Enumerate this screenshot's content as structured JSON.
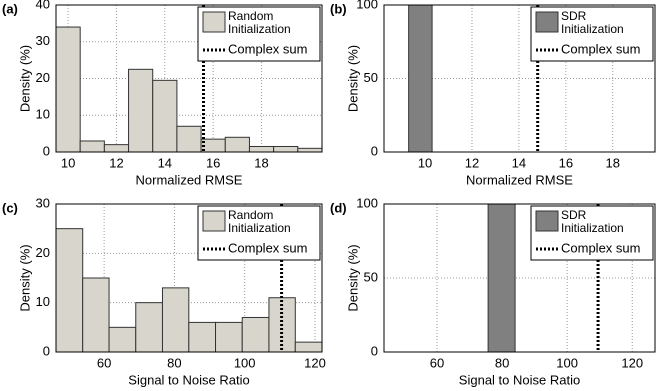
{
  "chart_data": [
    {
      "type": "histogram",
      "panel_label": "(a)",
      "xlabel": "Normalized RMSE",
      "ylabel": "Density (%)",
      "bins": [
        9.5,
        10.5,
        11.5,
        12.5,
        13.5,
        14.5,
        15.5,
        16.5,
        17.5,
        18.5,
        19.5,
        20.5
      ],
      "series": [
        {
          "name": "Random Initialization",
          "color": "#d8d6cc",
          "values": [
            34,
            3,
            2,
            22.5,
            19.5,
            7,
            3.5,
            4,
            1.5,
            1.5,
            1
          ]
        }
      ],
      "vlines": [
        {
          "name": "Complex sum",
          "x": 15.6,
          "color": "#000000"
        }
      ],
      "xlim": [
        9.5,
        20.5
      ],
      "xticks": [
        10,
        12,
        14,
        16,
        18
      ],
      "ylim": [
        0,
        40
      ],
      "yticks": [
        0,
        10,
        20,
        30,
        40
      ],
      "grid": true,
      "legend": "upper right"
    },
    {
      "type": "histogram",
      "panel_label": "(b)",
      "xlabel": "Normalized RMSE",
      "ylabel": "Density (%)",
      "bins": [
        9.3,
        10.3
      ],
      "series": [
        {
          "name": "SDR Initialization",
          "color": "#808080",
          "values": [
            100
          ]
        }
      ],
      "vlines": [
        {
          "name": "Complex sum",
          "x": 14.8,
          "color": "#000000"
        }
      ],
      "xlim": [
        8.25,
        19.8
      ],
      "xticks": [
        10,
        12,
        14,
        16,
        18
      ],
      "ylim": [
        0,
        100
      ],
      "yticks": [
        0,
        50,
        100
      ],
      "grid": true,
      "legend": "upper right"
    },
    {
      "type": "histogram",
      "panel_label": "(c)",
      "xlabel": "Signal to Noise Ratio",
      "ylabel": "Density (%)",
      "bins": [
        46.3,
        53.9,
        61.4,
        69,
        76.6,
        84.1,
        91.7,
        99.3,
        106.9,
        114.4,
        122
      ],
      "series": [
        {
          "name": "Random Initialization",
          "color": "#d8d6cc",
          "values": [
            25,
            15,
            5,
            10,
            13,
            6,
            6,
            7,
            11,
            2
          ]
        }
      ],
      "vlines": [
        {
          "name": "Complex sum",
          "x": 110.5,
          "color": "#000000"
        }
      ],
      "xlim": [
        46.3,
        122
      ],
      "xticks": [
        60,
        80,
        100,
        120
      ],
      "ylim": [
        0,
        30
      ],
      "yticks": [
        0,
        10,
        20,
        30
      ],
      "grid": true,
      "legend": "upper right"
    },
    {
      "type": "histogram",
      "panel_label": "(d)",
      "xlabel": "Signal to Noise Ratio",
      "ylabel": "Density (%)",
      "bins": [
        75.7,
        84
      ],
      "series": [
        {
          "name": "SDR Initialization",
          "color": "#808080",
          "values": [
            100
          ]
        }
      ],
      "vlines": [
        {
          "name": "Complex sum",
          "x": 109.5,
          "color": "#000000"
        }
      ],
      "xlim": [
        43.7,
        127
      ],
      "xticks": [
        60,
        80,
        100,
        120
      ],
      "ylim": [
        0,
        100
      ],
      "yticks": [
        0,
        50,
        100
      ],
      "grid": true,
      "legend": "upper right"
    }
  ]
}
